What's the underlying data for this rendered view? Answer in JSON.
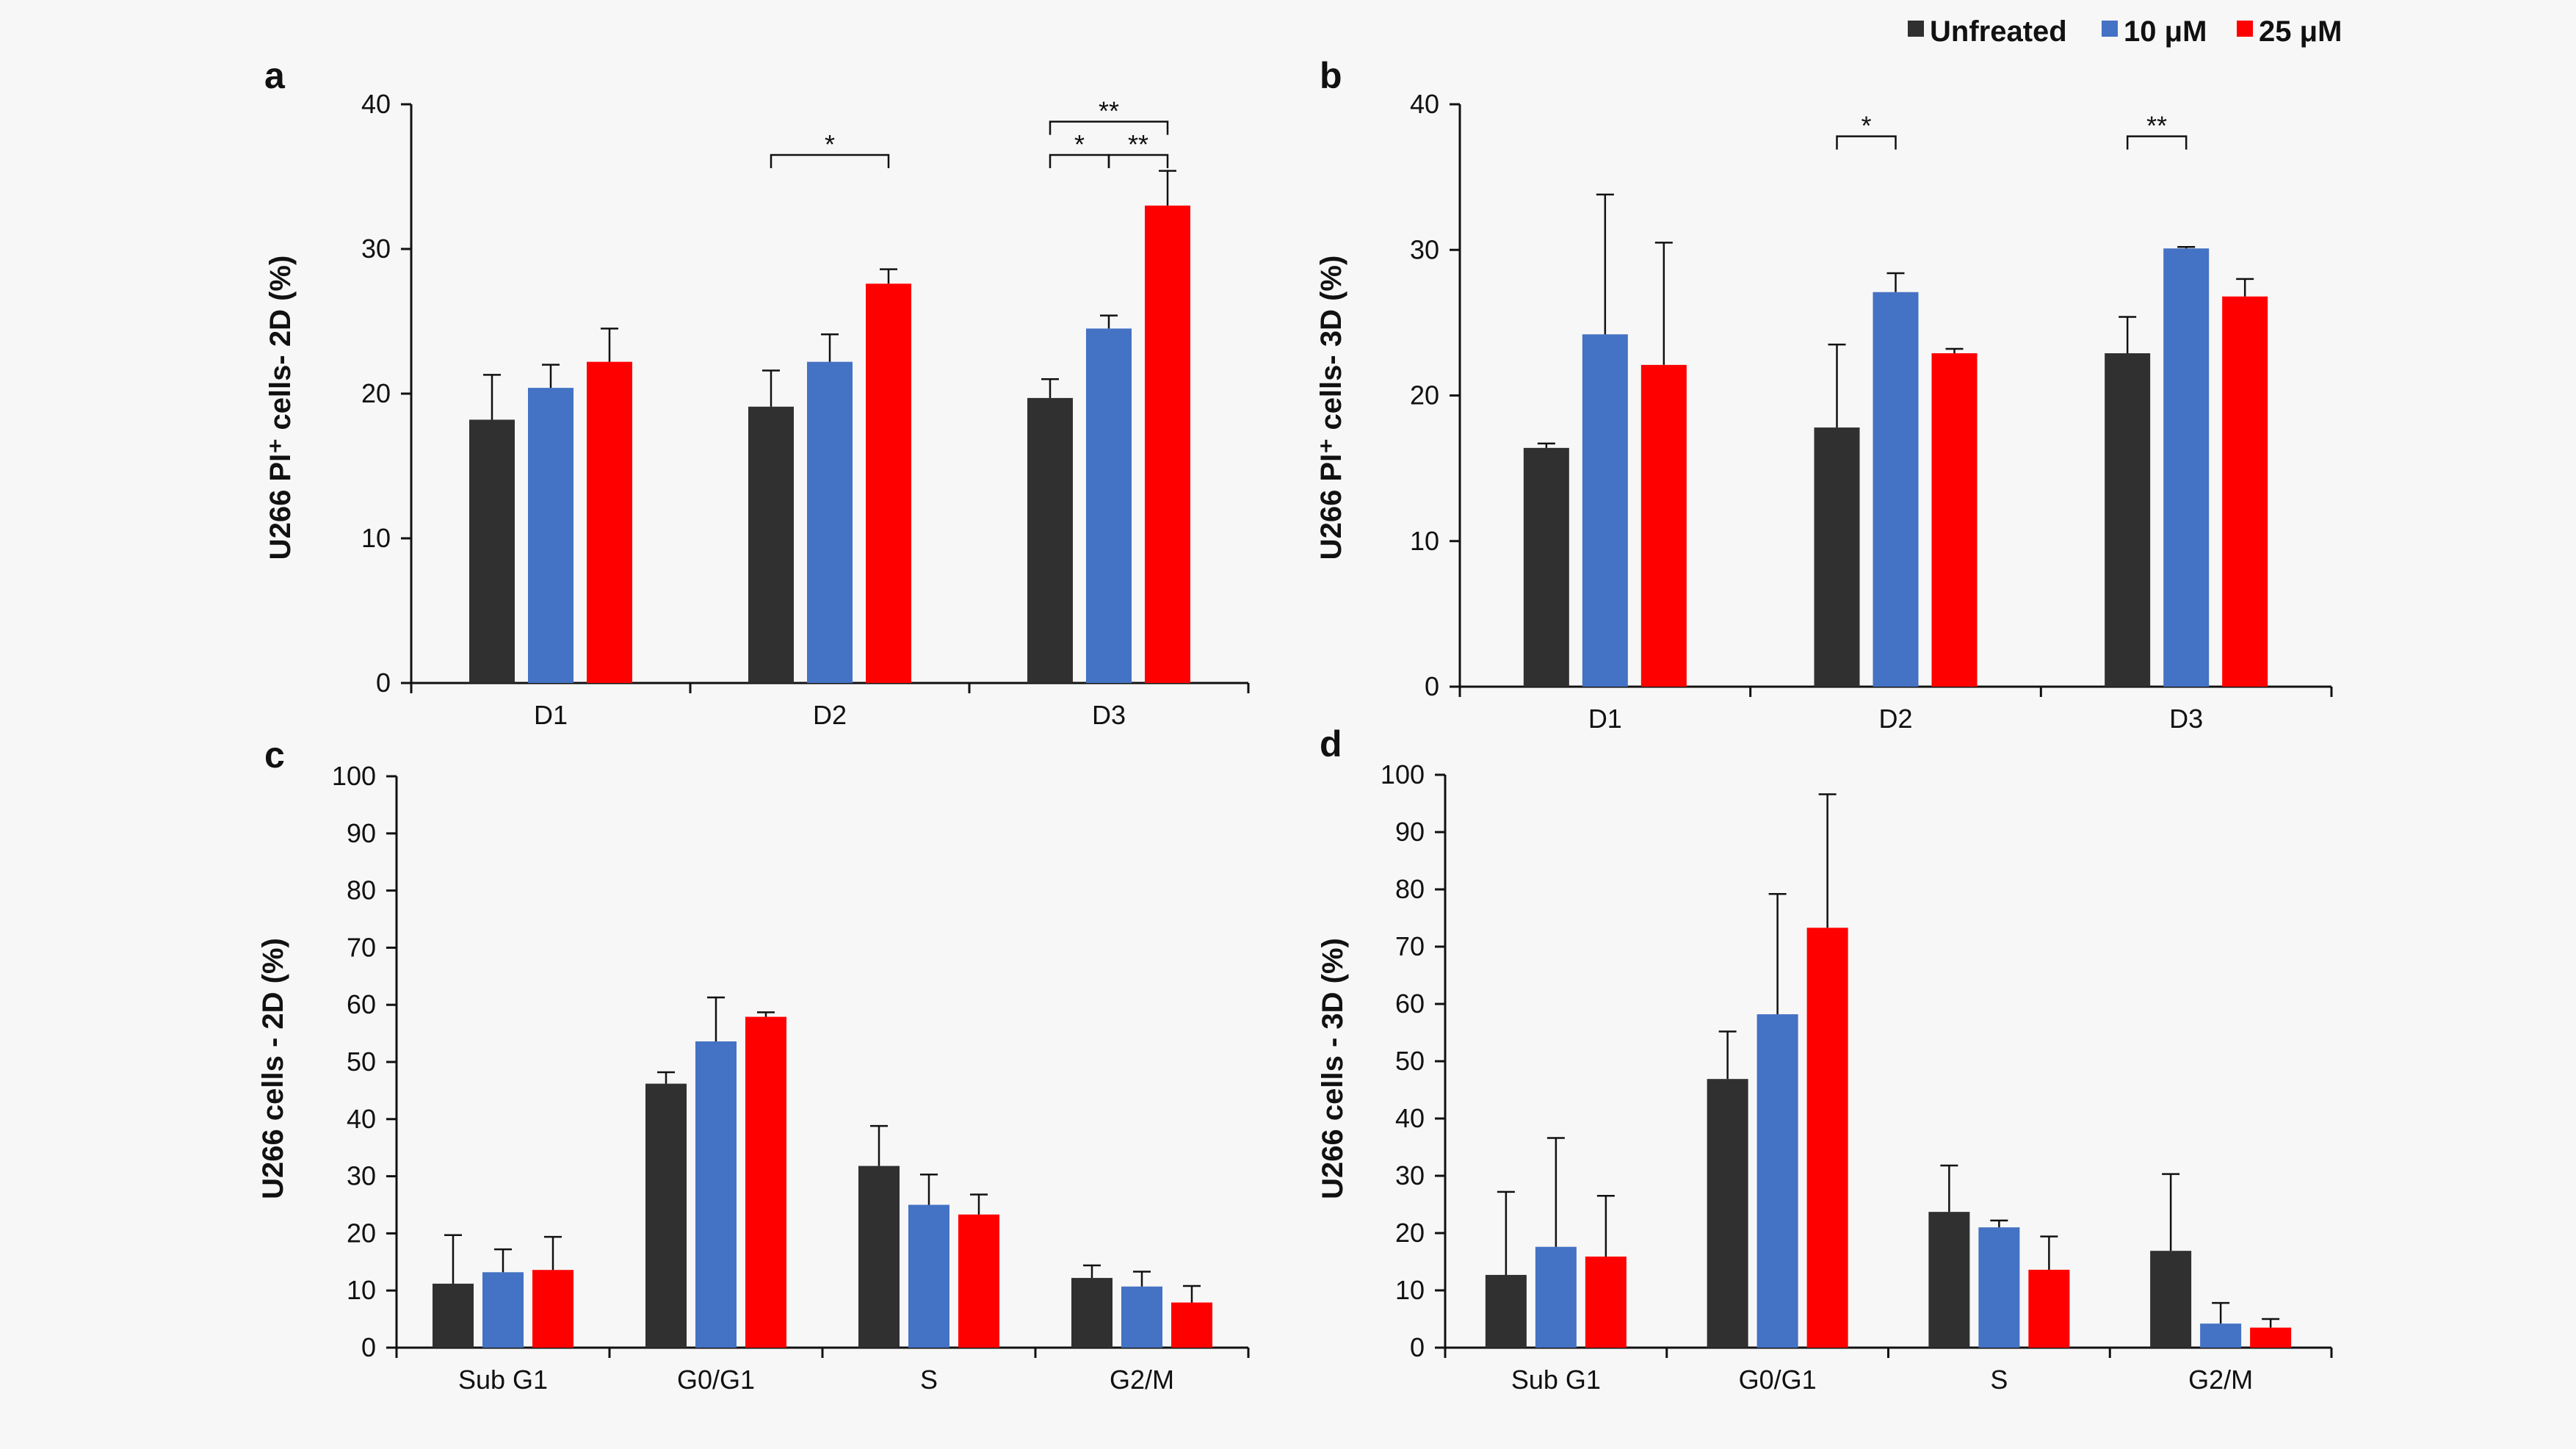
{
  "legend": {
    "items": [
      {
        "label": "Unfreated",
        "color": "#303030"
      },
      {
        "label": "10 μM",
        "color": "#4472c4"
      },
      {
        "label": "25 μM",
        "color": "#ff0000"
      }
    ]
  },
  "chart_data": [
    {
      "panel": "a",
      "type": "bar",
      "ylabel": "U266 PI⁺ cells- 2D (%)",
      "ylim": [
        0,
        40
      ],
      "yticks": [
        0,
        10,
        20,
        30,
        40
      ],
      "categories": [
        "D1",
        "D2",
        "D3"
      ],
      "series": [
        {
          "name": "Unfreated",
          "values": [
            18.2,
            19.1,
            19.7
          ],
          "errors": [
            3.1,
            2.5,
            1.3
          ]
        },
        {
          "name": "10 μM",
          "values": [
            20.4,
            22.2,
            24.5
          ],
          "errors": [
            1.6,
            1.9,
            0.9
          ]
        },
        {
          "name": "25 μM",
          "values": [
            22.2,
            27.6,
            33.0
          ],
          "errors": [
            2.3,
            1.0,
            2.4
          ]
        }
      ],
      "significance": [
        {
          "label": "*",
          "group": 1,
          "from": 0,
          "to": 2,
          "y": 36.5
        },
        {
          "label": "**",
          "group": 2,
          "from": 0,
          "to": 2,
          "y": 38.8
        },
        {
          "label": "*",
          "group": 2,
          "from": 0,
          "to": 1,
          "y": 36.5
        },
        {
          "label": "**",
          "group": 2,
          "from": 1,
          "to": 2,
          "y": 36.5
        }
      ]
    },
    {
      "panel": "b",
      "type": "bar",
      "ylabel": "U266 PI⁺ cells- 3D (%)",
      "ylim": [
        0,
        40
      ],
      "yticks": [
        0,
        10,
        20,
        30,
        40
      ],
      "categories": [
        "D1",
        "D2",
        "D3"
      ],
      "series": [
        {
          "name": "Unfreated",
          "values": [
            16.4,
            17.8,
            22.9
          ],
          "errors": [
            0.3,
            5.7,
            2.5
          ]
        },
        {
          "name": "10 μM",
          "values": [
            24.2,
            27.1,
            30.1
          ],
          "errors": [
            9.6,
            1.3,
            0.1
          ]
        },
        {
          "name": "25 μM",
          "values": [
            22.1,
            22.9,
            26.8
          ],
          "errors": [
            8.4,
            0.3,
            1.2
          ]
        }
      ],
      "significance": [
        {
          "label": "*",
          "group": 1,
          "from": 0,
          "to": 1,
          "y": 37.8
        },
        {
          "label": "**",
          "group": 2,
          "from": 0,
          "to": 1,
          "y": 37.8
        }
      ]
    },
    {
      "panel": "c",
      "type": "bar",
      "ylabel": "U266 cells - 2D (%)",
      "ylim": [
        0,
        100
      ],
      "yticks": [
        0,
        10,
        20,
        30,
        40,
        50,
        60,
        70,
        80,
        90,
        100
      ],
      "categories": [
        "Sub G1",
        "G0/G1",
        "S",
        "G2/M"
      ],
      "series": [
        {
          "name": "Unfreated",
          "values": [
            11.2,
            46.2,
            31.8,
            12.2
          ],
          "errors": [
            8.5,
            2.0,
            7.0,
            2.2
          ]
        },
        {
          "name": "10 μM",
          "values": [
            13.2,
            53.6,
            25.0,
            10.7
          ],
          "errors": [
            4.0,
            7.7,
            5.3,
            2.6
          ]
        },
        {
          "name": "25 μM",
          "values": [
            13.6,
            57.9,
            23.3,
            7.9
          ],
          "errors": [
            5.8,
            0.8,
            3.5,
            2.9
          ]
        }
      ],
      "significance": []
    },
    {
      "panel": "d",
      "type": "bar",
      "ylabel": "U266 cells - 3D (%)",
      "ylim": [
        0,
        100
      ],
      "yticks": [
        0,
        10,
        20,
        30,
        40,
        50,
        60,
        70,
        80,
        90,
        100
      ],
      "categories": [
        "Sub G1",
        "G0/G1",
        "S",
        "G2/M"
      ],
      "series": [
        {
          "name": "Unfreated",
          "values": [
            12.7,
            46.9,
            23.7,
            16.9
          ],
          "errors": [
            14.5,
            8.3,
            8.1,
            13.4
          ]
        },
        {
          "name": "10 μM",
          "values": [
            17.6,
            58.2,
            21.0,
            4.2
          ],
          "errors": [
            19.0,
            21.0,
            1.2,
            3.6
          ]
        },
        {
          "name": "25 μM",
          "values": [
            15.9,
            73.3,
            13.6,
            3.5
          ],
          "errors": [
            10.6,
            23.3,
            5.8,
            1.5
          ]
        }
      ],
      "significance": []
    }
  ]
}
